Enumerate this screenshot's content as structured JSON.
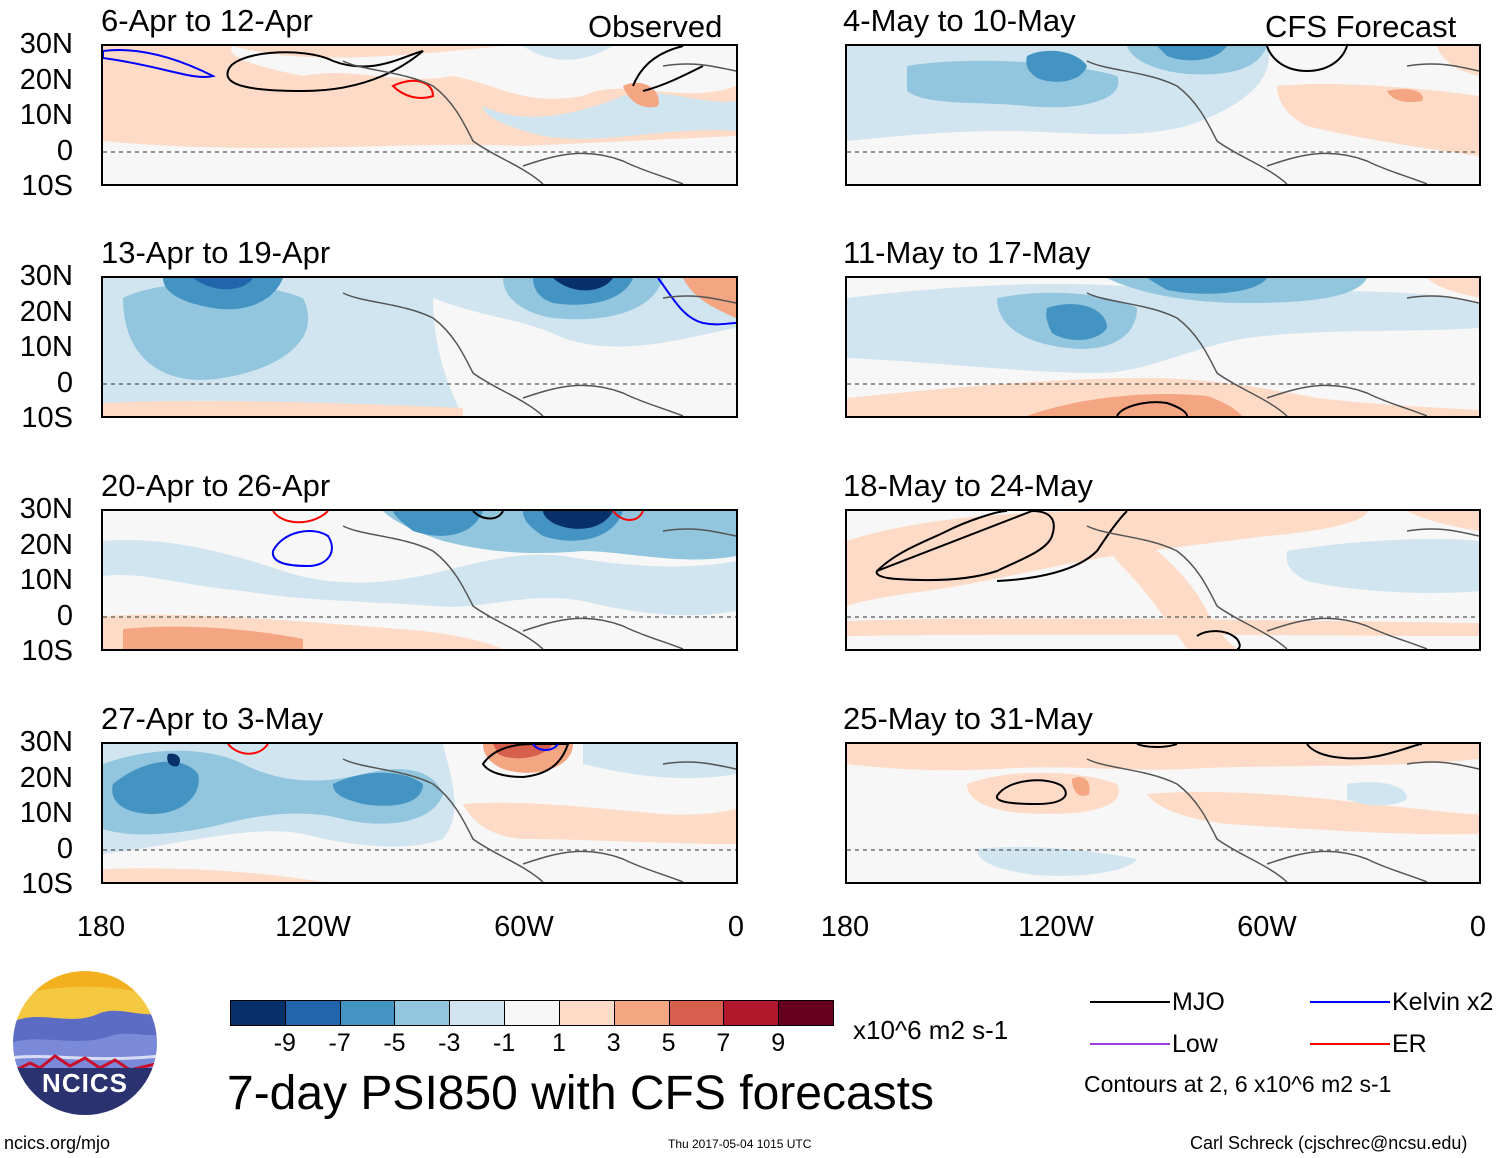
{
  "figure": {
    "title": "7-day PSI850 with CFS forecasts",
    "observed_label": "Observed",
    "forecast_label": "CFS Forecast",
    "footer_left": "ncics.org/mjo",
    "footer_center": "Thu 2017-05-04 1015 UTC",
    "footer_right": "Carl Schreck (cjschrec@ncsu.edu)",
    "logo_text": "NCICS"
  },
  "axes": {
    "y_labels": [
      "30N",
      "20N",
      "10N",
      "0",
      "10S"
    ],
    "x_labels": [
      "180",
      "120W",
      "60W",
      "0"
    ]
  },
  "panels": {
    "left": [
      {
        "period": "6-Apr to 12-Apr"
      },
      {
        "period": "13-Apr to 19-Apr"
      },
      {
        "period": "20-Apr to 26-Apr"
      },
      {
        "period": "27-Apr to 3-May"
      }
    ],
    "right": [
      {
        "period": "4-May to 10-May"
      },
      {
        "period": "11-May to 17-May"
      },
      {
        "period": "18-May to 24-May"
      },
      {
        "period": "25-May to 31-May"
      }
    ]
  },
  "colorbar": {
    "colors": [
      "#08306b",
      "#2166ac",
      "#4393c3",
      "#92c5de",
      "#d1e5f0",
      "#f7f7f7",
      "#fddbc7",
      "#f4a582",
      "#d6604d",
      "#b2182b",
      "#67001f"
    ],
    "ticks": [
      "-9",
      "-7",
      "-5",
      "-3",
      "-1",
      "1",
      "3",
      "5",
      "7",
      "9"
    ],
    "units": "x10^6 m2 s-1"
  },
  "legend": {
    "items": [
      {
        "label": "MJO",
        "color": "#000000"
      },
      {
        "label": "Kelvin x2",
        "color": "#0000ff"
      },
      {
        "label": "Low",
        "color": "#a040e0"
      },
      {
        "label": "ER",
        "color": "#ff0000"
      }
    ],
    "contour_note": "Contours at 2, 6 x10^6 m2 s-1"
  }
}
